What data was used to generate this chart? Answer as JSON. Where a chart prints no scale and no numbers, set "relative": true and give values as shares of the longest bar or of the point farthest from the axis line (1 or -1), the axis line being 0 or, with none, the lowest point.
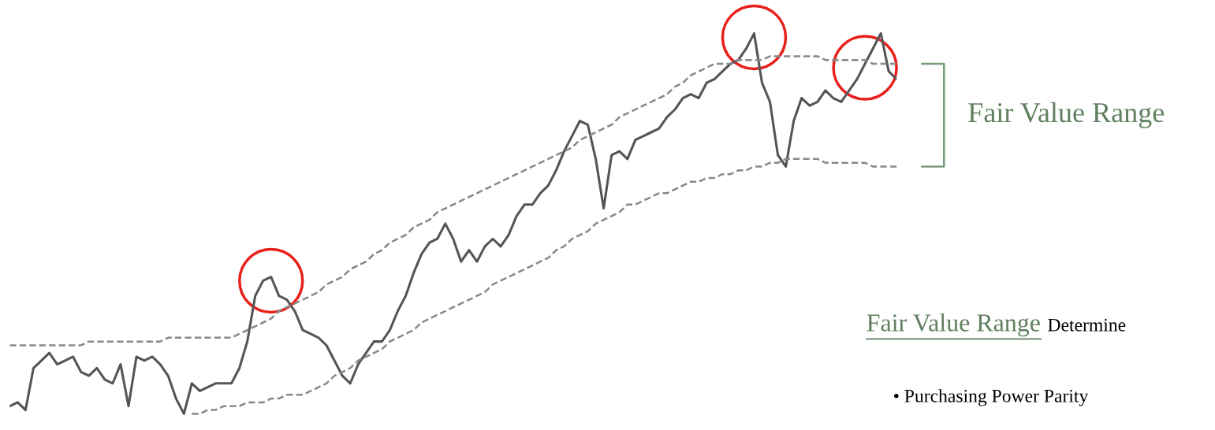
{
  "chart_data": {
    "type": "line",
    "relative": true,
    "categories": [
      null,
      null,
      null,
      null,
      null,
      null,
      null,
      null,
      null,
      null,
      null,
      null,
      null,
      null,
      null,
      null,
      null,
      null,
      null,
      null,
      null,
      null,
      null,
      null,
      null,
      null,
      null,
      null,
      null,
      null,
      null,
      null,
      null,
      null,
      null,
      null,
      null,
      null,
      null,
      null,
      null,
      null,
      null,
      null,
      null,
      null,
      null,
      null,
      null,
      null,
      null,
      null,
      null,
      null,
      null,
      null,
      null,
      null,
      null,
      null,
      null,
      null,
      null,
      null,
      null,
      null,
      null,
      null,
      null,
      null,
      null,
      null,
      null,
      null,
      null,
      null,
      null,
      null,
      null,
      null,
      null,
      null,
      null,
      null,
      null,
      null,
      null,
      null,
      null,
      null,
      null,
      null,
      null,
      null,
      null,
      null,
      null,
      null,
      null,
      null,
      null,
      null,
      null,
      null,
      null,
      null,
      null,
      null,
      null,
      null,
      null,
      null,
      null
    ],
    "series": [
      {
        "color": "#555555",
        "line_style": "solid",
        "values": [
          0.02,
          0.03,
          0.01,
          0.12,
          0.14,
          0.16,
          0.13,
          0.14,
          0.15,
          0.11,
          0.1,
          0.12,
          0.09,
          0.08,
          0.13,
          0.02,
          0.15,
          0.14,
          0.15,
          0.13,
          0.1,
          0.04,
          0,
          0.08,
          0.06,
          0.07,
          0.08,
          0.08,
          0.08,
          0.12,
          0.19,
          0.31,
          0.35,
          0.36,
          0.31,
          0.3,
          0.27,
          0.22,
          0.21,
          0.2,
          0.18,
          0.14,
          0.1,
          0.08,
          0.13,
          0.16,
          0.19,
          0.19,
          0.22,
          0.27,
          0.31,
          0.37,
          0.42,
          0.45,
          0.46,
          0.5,
          0.46,
          0.4,
          0.43,
          0.4,
          0.44,
          0.46,
          0.44,
          0.47,
          0.52,
          0.55,
          0.55,
          0.58,
          0.6,
          0.64,
          0.69,
          0.73,
          0.77,
          0.76,
          0.67,
          0.54,
          0.68,
          0.69,
          0.67,
          0.72,
          0.73,
          0.74,
          0.75,
          0.78,
          0.8,
          0.83,
          0.84,
          0.83,
          0.87,
          0.88,
          0.9,
          0.92,
          0.93,
          0.96,
          1,
          0.87,
          0.82,
          0.68,
          0.65,
          0.77,
          0.83,
          0.81,
          0.82,
          0.85,
          0.83,
          0.82,
          0.85,
          0.88,
          0.92,
          0.96,
          1,
          0.9,
          0.88
        ]
      },
      {
        "color": "#888888",
        "line_style": "dashed",
        "values": [
          0.18,
          0.18,
          0.18,
          0.18,
          0.18,
          0.18,
          0.18,
          0.18,
          0.18,
          0.18,
          0.19,
          0.19,
          0.19,
          0.19,
          0.19,
          0.19,
          0.19,
          0.19,
          0.19,
          0.19,
          0.2,
          0.2,
          0.2,
          0.2,
          0.2,
          0.2,
          0.2,
          0.2,
          0.2,
          0.21,
          0.22,
          0.23,
          0.24,
          0.25,
          0.27,
          0.28,
          0.29,
          0.3,
          0.31,
          0.32,
          0.34,
          0.35,
          0.36,
          0.38,
          0.39,
          0.4,
          0.42,
          0.43,
          0.45,
          0.46,
          0.47,
          0.49,
          0.5,
          0.51,
          0.53,
          0.54,
          0.55,
          0.56,
          0.57,
          0.58,
          0.59,
          0.6,
          0.61,
          0.62,
          0.63,
          0.64,
          0.65,
          0.66,
          0.67,
          0.68,
          0.69,
          0.7,
          0.72,
          0.73,
          0.74,
          0.75,
          0.76,
          0.78,
          0.79,
          0.8,
          0.81,
          0.82,
          0.83,
          0.84,
          0.86,
          0.87,
          0.89,
          0.9,
          0.91,
          0.92,
          0.92,
          0.92,
          0.93,
          0.93,
          0.93,
          0.93,
          0.94,
          0.94,
          0.94,
          0.94,
          0.94,
          0.94,
          0.94,
          0.93,
          0.93,
          0.93,
          0.93,
          0.93,
          0.93,
          0.92,
          0.92,
          0.92,
          0.92
        ]
      },
      {
        "color": "#888888",
        "line_style": "dashed",
        "values": [
          null,
          null,
          null,
          null,
          null,
          null,
          null,
          null,
          null,
          null,
          null,
          null,
          null,
          null,
          null,
          null,
          null,
          null,
          null,
          null,
          null,
          null,
          null,
          0.0,
          0.0,
          0.01,
          0.01,
          0.02,
          0.02,
          0.02,
          0.03,
          0.03,
          0.03,
          0.04,
          0.04,
          0.05,
          0.05,
          0.05,
          0.06,
          0.07,
          0.08,
          0.1,
          0.11,
          0.12,
          0.14,
          0.15,
          0.16,
          0.17,
          0.19,
          0.2,
          0.21,
          0.22,
          0.24,
          0.25,
          0.26,
          0.27,
          0.28,
          0.29,
          0.3,
          0.31,
          0.32,
          0.34,
          0.35,
          0.36,
          0.37,
          0.38,
          0.39,
          0.4,
          0.41,
          0.43,
          0.44,
          0.46,
          0.47,
          0.48,
          0.5,
          0.51,
          0.52,
          0.53,
          0.55,
          0.55,
          0.56,
          0.57,
          0.58,
          0.58,
          0.59,
          0.6,
          0.61,
          0.61,
          0.62,
          0.62,
          0.63,
          0.63,
          0.64,
          0.64,
          0.65,
          0.65,
          0.66,
          0.66,
          0.67,
          0.67,
          0.67,
          0.67,
          0.67,
          0.66,
          0.66,
          0.66,
          0.66,
          0.66,
          0.66,
          0.65,
          0.65,
          0.65,
          0.65
        ]
      }
    ],
    "annotations": [
      "Fair Value Range",
      "Fair Value Range",
      "Determine",
      "• Purchasing Power Parity"
    ]
  }
}
